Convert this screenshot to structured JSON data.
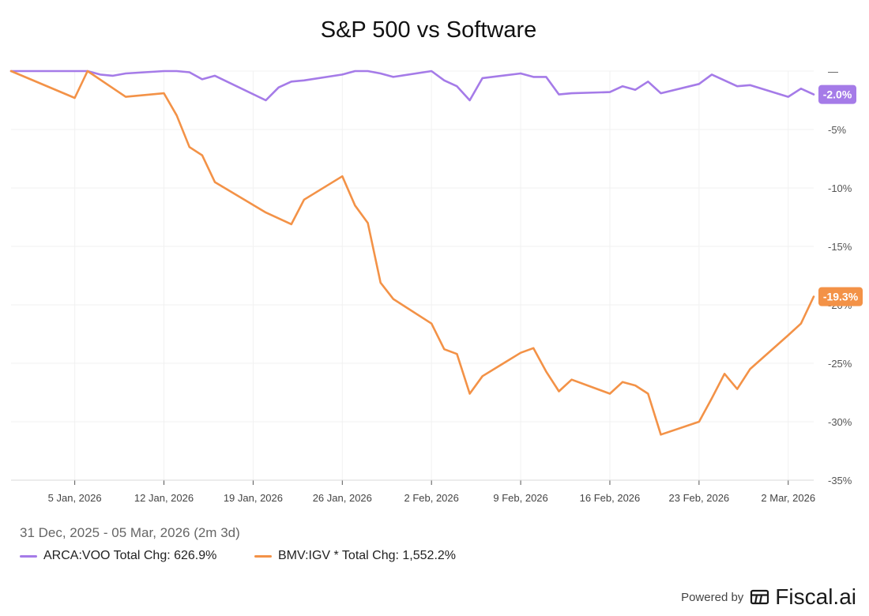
{
  "chart_data": {
    "type": "line",
    "title": "S&P 500 vs Software",
    "date_range": "31 Dec, 2025 - 05 Mar, 2026 (2m 3d)",
    "ylim": [
      -35,
      1.5
    ],
    "y_ticks": [
      "—",
      "-5%",
      "-10%",
      "-15%",
      "-20%",
      "-25%",
      "-30%",
      "-35%"
    ],
    "y_tick_values": [
      0,
      -5,
      -10,
      -15,
      -20,
      -25,
      -30,
      -35
    ],
    "x_ticks": [
      "5 Jan, 2026",
      "12 Jan, 2026",
      "19 Jan, 2026",
      "26 Jan, 2026",
      "2 Feb, 2026",
      "9 Feb, 2026",
      "16 Feb, 2026",
      "23 Feb, 2026",
      "2 Mar, 2026"
    ],
    "x_tick_days": [
      5,
      12,
      19,
      26,
      33,
      40,
      47,
      54,
      61
    ],
    "grid": true,
    "series": [
      {
        "name": "ARCA:VOO Total Chg: 626.9%",
        "color": "#a57be8",
        "end_label": "-2.0%",
        "points": [
          [
            "2025-12-31",
            0.0
          ],
          [
            "2026-01-02",
            0.0
          ],
          [
            "2026-01-05",
            0.0
          ],
          [
            "2026-01-06",
            0.0
          ],
          [
            "2026-01-07",
            -0.3
          ],
          [
            "2026-01-08",
            -0.4
          ],
          [
            "2026-01-09",
            -0.2
          ],
          [
            "2026-01-12",
            0.0
          ],
          [
            "2026-01-13",
            0.0
          ],
          [
            "2026-01-14",
            -0.1
          ],
          [
            "2026-01-15",
            -0.7
          ],
          [
            "2026-01-16",
            -0.4
          ],
          [
            "2026-01-20",
            -2.5
          ],
          [
            "2026-01-21",
            -1.4
          ],
          [
            "2026-01-22",
            -0.9
          ],
          [
            "2026-01-23",
            -0.8
          ],
          [
            "2026-01-26",
            -0.3
          ],
          [
            "2026-01-27",
            0.0
          ],
          [
            "2026-01-28",
            0.0
          ],
          [
            "2026-01-29",
            -0.2
          ],
          [
            "2026-01-30",
            -0.5
          ],
          [
            "2026-02-02",
            0.0
          ],
          [
            "2026-02-03",
            -0.8
          ],
          [
            "2026-02-04",
            -1.3
          ],
          [
            "2026-02-05",
            -2.5
          ],
          [
            "2026-02-06",
            -0.6
          ],
          [
            "2026-02-09",
            -0.2
          ],
          [
            "2026-02-10",
            -0.5
          ],
          [
            "2026-02-11",
            -0.5
          ],
          [
            "2026-02-12",
            -2.0
          ],
          [
            "2026-02-13",
            -1.9
          ],
          [
            "2026-02-16",
            -1.8
          ],
          [
            "2026-02-17",
            -1.3
          ],
          [
            "2026-02-18",
            -1.6
          ],
          [
            "2026-02-19",
            -0.9
          ],
          [
            "2026-02-20",
            -1.9
          ],
          [
            "2026-02-23",
            -1.1
          ],
          [
            "2026-02-24",
            -0.3
          ],
          [
            "2026-02-25",
            -0.8
          ],
          [
            "2026-02-26",
            -1.3
          ],
          [
            "2026-02-27",
            -1.2
          ],
          [
            "2026-03-02",
            -2.2
          ],
          [
            "2026-03-03",
            -1.5
          ],
          [
            "2026-03-04",
            -2.0
          ]
        ]
      },
      {
        "name": "BMV:IGV * Total Chg: 1,552.2%",
        "color": "#f39247",
        "end_label": "-19.3%",
        "points": [
          [
            "2025-12-31",
            0.0
          ],
          [
            "2026-01-05",
            -2.3
          ],
          [
            "2026-01-06",
            0.0
          ],
          [
            "2026-01-09",
            -2.2
          ],
          [
            "2026-01-12",
            -1.9
          ],
          [
            "2026-01-13",
            -3.8
          ],
          [
            "2026-01-14",
            -6.5
          ],
          [
            "2026-01-15",
            -7.2
          ],
          [
            "2026-01-16",
            -9.5
          ],
          [
            "2026-01-20",
            -12.1
          ],
          [
            "2026-01-22",
            -13.1
          ],
          [
            "2026-01-23",
            -11.0
          ],
          [
            "2026-01-26",
            -9.0
          ],
          [
            "2026-01-27",
            -11.5
          ],
          [
            "2026-01-28",
            -13.0
          ],
          [
            "2026-01-29",
            -18.1
          ],
          [
            "2026-01-30",
            -19.5
          ],
          [
            "2026-02-02",
            -21.6
          ],
          [
            "2026-02-03",
            -23.8
          ],
          [
            "2026-02-04",
            -24.2
          ],
          [
            "2026-02-05",
            -27.6
          ],
          [
            "2026-02-06",
            -26.1
          ],
          [
            "2026-02-09",
            -24.1
          ],
          [
            "2026-02-10",
            -23.7
          ],
          [
            "2026-02-11",
            -25.7
          ],
          [
            "2026-02-12",
            -27.4
          ],
          [
            "2026-02-13",
            -26.4
          ],
          [
            "2026-02-16",
            -27.6
          ],
          [
            "2026-02-17",
            -26.6
          ],
          [
            "2026-02-18",
            -26.9
          ],
          [
            "2026-02-19",
            -27.6
          ],
          [
            "2026-02-20",
            -31.1
          ],
          [
            "2026-02-23",
            -30.0
          ],
          [
            "2026-02-24",
            -28.0
          ],
          [
            "2026-02-25",
            -25.9
          ],
          [
            "2026-02-26",
            -27.2
          ],
          [
            "2026-02-27",
            -25.5
          ],
          [
            "2026-03-02",
            -22.6
          ],
          [
            "2026-03-03",
            -21.6
          ],
          [
            "2026-03-04",
            -19.3
          ]
        ]
      }
    ]
  },
  "footer": {
    "powered_by": "Powered by",
    "brand": "Fiscal.ai"
  },
  "icons": {
    "brand_logo": "fiscal-logo-icon"
  }
}
